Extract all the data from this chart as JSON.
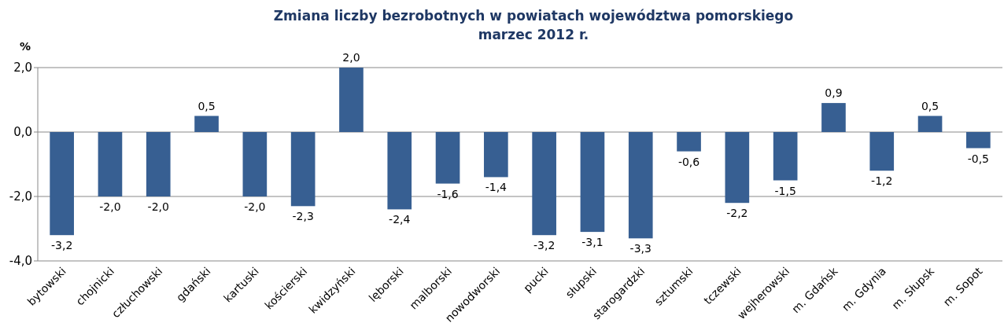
{
  "chart_data": {
    "type": "bar",
    "title": "Zmiana liczby bezrobotnych w powiatach województwa pomorskiego",
    "subtitle": "marzec 2012 r.",
    "ylabel": "%",
    "categories": [
      "bytowski",
      "chojnicki",
      "człuchowski",
      "gdański",
      "kartuski",
      "kościerski",
      "kwidzyński",
      "lęborski",
      "malborski",
      "nowodworski",
      "pucki",
      "słupski",
      "starogardzki",
      "sztumski",
      "tczewski",
      "wejherowski",
      "m. Gdańsk",
      "m. Gdynia",
      "m. Słupsk",
      "m. Sopot"
    ],
    "values": [
      -3.2,
      -2.0,
      -2.0,
      0.5,
      -2.0,
      -2.3,
      2.0,
      -2.4,
      -1.6,
      -1.4,
      -3.2,
      -3.1,
      -3.3,
      -0.6,
      -2.2,
      -1.5,
      0.9,
      -1.2,
      0.5,
      -0.5
    ],
    "value_labels": [
      "-3,2",
      "-2,0",
      "-2,0",
      "0,5",
      "-2,0",
      "-2,3",
      "2,0",
      "-2,4",
      "-1,6",
      "-1,4",
      "-3,2",
      "-3,1",
      "-3,3",
      "-0,6",
      "-2,2",
      "-1,5",
      "0,9",
      "-1,2",
      "0,5",
      "-0,5"
    ],
    "color": "#375f92",
    "grid": "y",
    "ylim": [
      -4,
      2
    ],
    "yticks": [
      {
        "value": -4,
        "label": "-4,0"
      },
      {
        "value": -2,
        "label": "-2,0"
      },
      {
        "value": 0,
        "label": "0,0"
      },
      {
        "value": 2,
        "label": "2,0"
      }
    ]
  }
}
